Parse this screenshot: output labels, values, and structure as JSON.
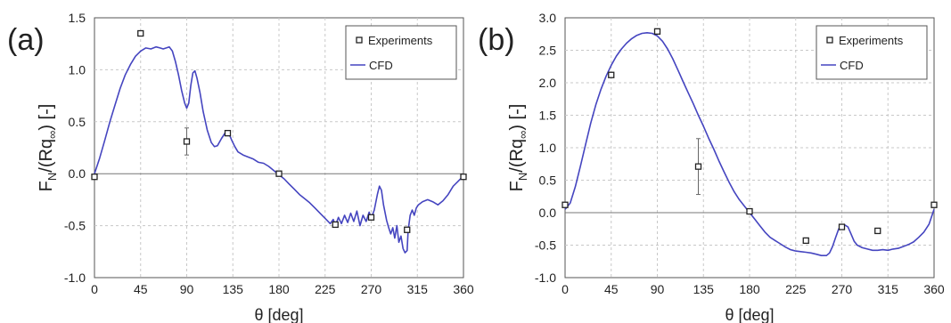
{
  "chart_data": [
    {
      "type": "line",
      "panel_label": "(a)",
      "xlabel": "θ [deg]",
      "ylabel": "F_N/(Rq_∞) [-]",
      "xlim": [
        0,
        360
      ],
      "ylim": [
        -1.0,
        1.5
      ],
      "xticks": [
        0,
        45,
        90,
        135,
        180,
        225,
        270,
        315,
        360
      ],
      "xtick_labels": [
        "0",
        "45",
        "90",
        "135",
        "180",
        "225",
        "270",
        "315",
        "360"
      ],
      "yticks": [
        -1.0,
        -0.5,
        0.0,
        0.5,
        1.0,
        1.5
      ],
      "ytick_labels": [
        "-1.0",
        "-0.5",
        "0.0",
        "0.5",
        "1.0",
        "1.5"
      ],
      "grid": true,
      "legend_position": "top-right",
      "series": [
        {
          "name": "Experiments",
          "kind": "marker",
          "color": "#222222",
          "points": [
            {
              "x": 0,
              "y": -0.03
            },
            {
              "x": 45,
              "y": 1.35
            },
            {
              "x": 90,
              "y": 0.31,
              "err": 0.13
            },
            {
              "x": 130,
              "y": 0.39
            },
            {
              "x": 180,
              "y": 0.0
            },
            {
              "x": 235,
              "y": -0.49
            },
            {
              "x": 270,
              "y": -0.42
            },
            {
              "x": 305,
              "y": -0.54
            },
            {
              "x": 360,
              "y": -0.03
            }
          ]
        },
        {
          "name": "CFD",
          "kind": "line",
          "color": "#4545c0",
          "points": [
            [
              0,
              0.0
            ],
            [
              5,
              0.15
            ],
            [
              10,
              0.32
            ],
            [
              15,
              0.5
            ],
            [
              20,
              0.66
            ],
            [
              25,
              0.82
            ],
            [
              30,
              0.95
            ],
            [
              35,
              1.05
            ],
            [
              40,
              1.13
            ],
            [
              45,
              1.18
            ],
            [
              50,
              1.21
            ],
            [
              55,
              1.2
            ],
            [
              60,
              1.22
            ],
            [
              64,
              1.21
            ],
            [
              67,
              1.2
            ],
            [
              70,
              1.21
            ],
            [
              73,
              1.22
            ],
            [
              76,
              1.18
            ],
            [
              79,
              1.08
            ],
            [
              82,
              0.95
            ],
            [
              85,
              0.8
            ],
            [
              88,
              0.68
            ],
            [
              90,
              0.63
            ],
            [
              92,
              0.68
            ],
            [
              94,
              0.85
            ],
            [
              96,
              0.97
            ],
            [
              98,
              0.99
            ],
            [
              100,
              0.92
            ],
            [
              103,
              0.78
            ],
            [
              106,
              0.6
            ],
            [
              110,
              0.42
            ],
            [
              114,
              0.3
            ],
            [
              117,
              0.26
            ],
            [
              120,
              0.27
            ],
            [
              124,
              0.34
            ],
            [
              128,
              0.4
            ],
            [
              131,
              0.39
            ],
            [
              134,
              0.32
            ],
            [
              137,
              0.26
            ],
            [
              140,
              0.21
            ],
            [
              145,
              0.18
            ],
            [
              150,
              0.16
            ],
            [
              155,
              0.14
            ],
            [
              160,
              0.11
            ],
            [
              165,
              0.1
            ],
            [
              170,
              0.07
            ],
            [
              175,
              0.03
            ],
            [
              180,
              -0.01
            ],
            [
              185,
              -0.05
            ],
            [
              190,
              -0.1
            ],
            [
              195,
              -0.15
            ],
            [
              200,
              -0.2
            ],
            [
              205,
              -0.24
            ],
            [
              210,
              -0.28
            ],
            [
              215,
              -0.33
            ],
            [
              220,
              -0.38
            ],
            [
              225,
              -0.43
            ],
            [
              230,
              -0.48
            ],
            [
              233,
              -0.44
            ],
            [
              235,
              -0.5
            ],
            [
              238,
              -0.42
            ],
            [
              241,
              -0.48
            ],
            [
              244,
              -0.4
            ],
            [
              247,
              -0.47
            ],
            [
              250,
              -0.38
            ],
            [
              253,
              -0.46
            ],
            [
              256,
              -0.36
            ],
            [
              259,
              -0.5
            ],
            [
              262,
              -0.4
            ],
            [
              265,
              -0.46
            ],
            [
              268,
              -0.37
            ],
            [
              270,
              -0.43
            ],
            [
              273,
              -0.35
            ],
            [
              276,
              -0.2
            ],
            [
              278,
              -0.12
            ],
            [
              280,
              -0.16
            ],
            [
              282,
              -0.3
            ],
            [
              285,
              -0.45
            ],
            [
              287,
              -0.52
            ],
            [
              289,
              -0.58
            ],
            [
              291,
              -0.52
            ],
            [
              293,
              -0.62
            ],
            [
              295,
              -0.5
            ],
            [
              297,
              -0.66
            ],
            [
              299,
              -0.6
            ],
            [
              301,
              -0.72
            ],
            [
              303,
              -0.76
            ],
            [
              305,
              -0.74
            ],
            [
              306,
              -0.55
            ],
            [
              308,
              -0.4
            ],
            [
              310,
              -0.35
            ],
            [
              312,
              -0.4
            ],
            [
              314,
              -0.33
            ],
            [
              316,
              -0.3
            ],
            [
              320,
              -0.27
            ],
            [
              325,
              -0.25
            ],
            [
              330,
              -0.27
            ],
            [
              335,
              -0.3
            ],
            [
              340,
              -0.26
            ],
            [
              345,
              -0.2
            ],
            [
              350,
              -0.12
            ],
            [
              355,
              -0.07
            ],
            [
              360,
              -0.02
            ]
          ]
        }
      ]
    },
    {
      "type": "line",
      "panel_label": "(b)",
      "xlabel": "θ [deg]",
      "ylabel": "F_N/(Rq_∞) [-]",
      "xlim": [
        0,
        360
      ],
      "ylim": [
        -1.0,
        3.0
      ],
      "xticks": [
        0,
        45,
        90,
        135,
        180,
        225,
        270,
        315,
        360
      ],
      "xtick_labels": [
        "0",
        "45",
        "90",
        "135",
        "180",
        "225",
        "270",
        "315",
        "360"
      ],
      "yticks": [
        -1.0,
        -0.5,
        0.0,
        0.5,
        1.0,
        1.5,
        2.0,
        2.5,
        3.0
      ],
      "ytick_labels": [
        "-1.0",
        "-0.5",
        "0.0",
        "0.5",
        "1.0",
        "1.5",
        "2.0",
        "2.5",
        "3.0"
      ],
      "grid": true,
      "legend_position": "top-right",
      "series": [
        {
          "name": "Experiments",
          "kind": "marker",
          "color": "#222222",
          "points": [
            {
              "x": 0,
              "y": 0.12
            },
            {
              "x": 45,
              "y": 2.12
            },
            {
              "x": 90,
              "y": 2.79
            },
            {
              "x": 130,
              "y": 0.71,
              "err": 0.43
            },
            {
              "x": 180,
              "y": 0.02
            },
            {
              "x": 235,
              "y": -0.43
            },
            {
              "x": 270,
              "y": -0.22
            },
            {
              "x": 305,
              "y": -0.28
            },
            {
              "x": 360,
              "y": 0.12
            }
          ]
        },
        {
          "name": "CFD",
          "kind": "line",
          "color": "#4545c0",
          "points": [
            [
              0,
              0.05
            ],
            [
              5,
              0.15
            ],
            [
              10,
              0.4
            ],
            [
              15,
              0.72
            ],
            [
              20,
              1.05
            ],
            [
              25,
              1.38
            ],
            [
              30,
              1.66
            ],
            [
              35,
              1.9
            ],
            [
              40,
              2.1
            ],
            [
              45,
              2.27
            ],
            [
              50,
              2.41
            ],
            [
              55,
              2.52
            ],
            [
              60,
              2.61
            ],
            [
              65,
              2.68
            ],
            [
              70,
              2.73
            ],
            [
              75,
              2.76
            ],
            [
              80,
              2.77
            ],
            [
              85,
              2.76
            ],
            [
              90,
              2.72
            ],
            [
              95,
              2.64
            ],
            [
              100,
              2.52
            ],
            [
              105,
              2.37
            ],
            [
              110,
              2.2
            ],
            [
              115,
              2.02
            ],
            [
              120,
              1.85
            ],
            [
              125,
              1.68
            ],
            [
              130,
              1.5
            ],
            [
              135,
              1.33
            ],
            [
              140,
              1.15
            ],
            [
              145,
              0.98
            ],
            [
              150,
              0.8
            ],
            [
              155,
              0.63
            ],
            [
              160,
              0.47
            ],
            [
              165,
              0.32
            ],
            [
              170,
              0.2
            ],
            [
              175,
              0.1
            ],
            [
              180,
              0.0
            ],
            [
              185,
              -0.1
            ],
            [
              190,
              -0.2
            ],
            [
              195,
              -0.3
            ],
            [
              200,
              -0.38
            ],
            [
              205,
              -0.43
            ],
            [
              210,
              -0.48
            ],
            [
              215,
              -0.53
            ],
            [
              220,
              -0.57
            ],
            [
              225,
              -0.59
            ],
            [
              230,
              -0.6
            ],
            [
              235,
              -0.61
            ],
            [
              240,
              -0.62
            ],
            [
              245,
              -0.64
            ],
            [
              250,
              -0.66
            ],
            [
              255,
              -0.66
            ],
            [
              258,
              -0.62
            ],
            [
              261,
              -0.52
            ],
            [
              264,
              -0.38
            ],
            [
              267,
              -0.25
            ],
            [
              270,
              -0.2
            ],
            [
              273,
              -0.19
            ],
            [
              276,
              -0.22
            ],
            [
              279,
              -0.33
            ],
            [
              282,
              -0.44
            ],
            [
              285,
              -0.5
            ],
            [
              290,
              -0.54
            ],
            [
              295,
              -0.56
            ],
            [
              300,
              -0.58
            ],
            [
              305,
              -0.58
            ],
            [
              310,
              -0.57
            ],
            [
              315,
              -0.58
            ],
            [
              320,
              -0.56
            ],
            [
              325,
              -0.55
            ],
            [
              330,
              -0.52
            ],
            [
              335,
              -0.49
            ],
            [
              340,
              -0.45
            ],
            [
              345,
              -0.38
            ],
            [
              350,
              -0.3
            ],
            [
              355,
              -0.18
            ],
            [
              360,
              0.05
            ]
          ]
        }
      ]
    }
  ]
}
